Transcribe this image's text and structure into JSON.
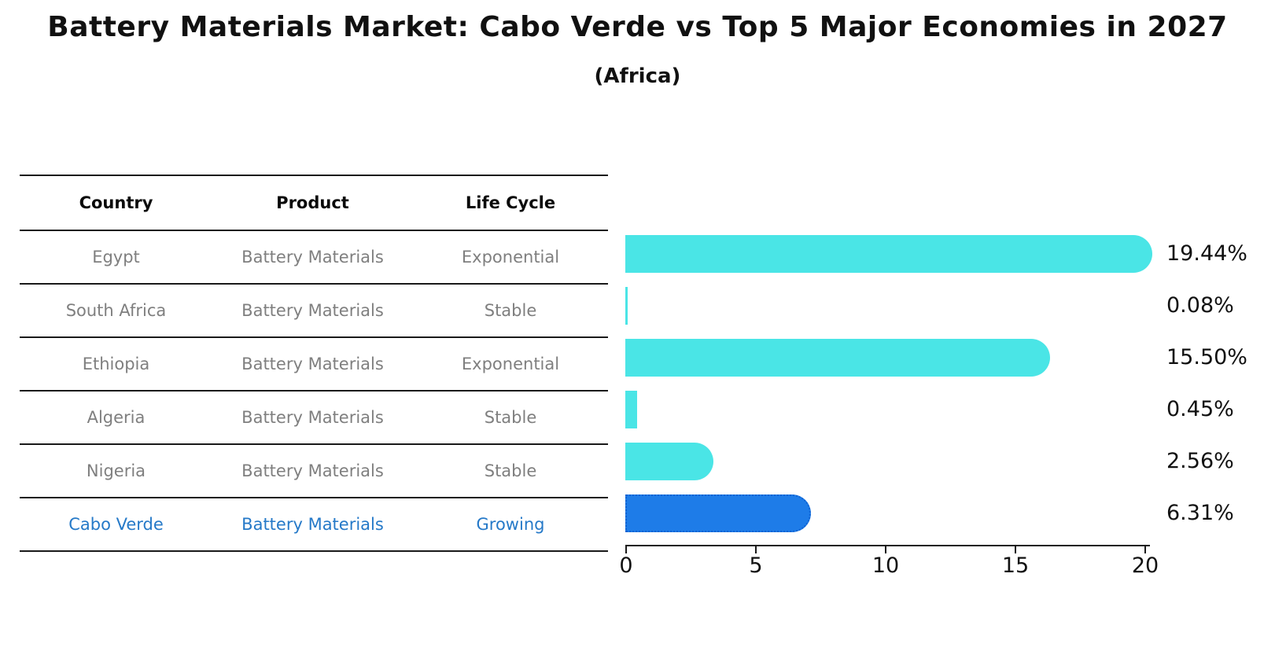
{
  "title": "Battery Materials Market: Cabo Verde vs Top 5 Major Economies in 2027",
  "subtitle": "(Africa)",
  "table": {
    "headers": [
      "Country",
      "Product",
      "Life Cycle"
    ],
    "rows": [
      {
        "country": "Egypt",
        "product": "Battery Materials",
        "life_cycle": "Exponential",
        "highlight": false
      },
      {
        "country": "South Africa",
        "product": "Battery Materials",
        "life_cycle": "Stable",
        "highlight": false
      },
      {
        "country": "Ethiopia",
        "product": "Battery Materials",
        "life_cycle": "Exponential",
        "highlight": false
      },
      {
        "country": "Algeria",
        "product": "Battery Materials",
        "life_cycle": "Stable",
        "highlight": false
      },
      {
        "country": "Nigeria",
        "product": "Battery Materials",
        "life_cycle": "Stable",
        "highlight": false
      },
      {
        "country": "Cabo Verde",
        "product": "Battery Materials",
        "life_cycle": "Growing",
        "highlight": true
      }
    ]
  },
  "chart_data": {
    "type": "bar",
    "orientation": "horizontal",
    "categories": [
      "Egypt",
      "South Africa",
      "Ethiopia",
      "Algeria",
      "Nigeria",
      "Cabo Verde"
    ],
    "values": [
      19.44,
      0.08,
      15.5,
      0.45,
      2.56,
      6.31
    ],
    "value_labels": [
      "19.44%",
      "0.08%",
      "15.50%",
      "0.45%",
      "2.56%",
      "6.31%"
    ],
    "highlight_index": 5,
    "xlim": [
      0,
      20
    ],
    "x_ticks": [
      "0",
      "5",
      "10",
      "15",
      "20"
    ],
    "grid": false,
    "legend": null,
    "bar_color": "#4ae5e6",
    "highlight_bar_color": "#1e7ce8",
    "highlight_text_color": "#2579c8"
  }
}
